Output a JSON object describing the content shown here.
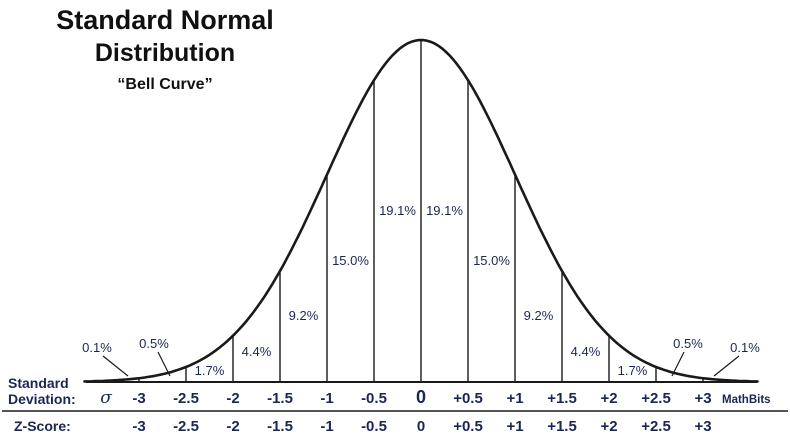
{
  "title": {
    "line1": "Standard Normal",
    "line2": "Distribution",
    "subtitle": "“Bell Curve”"
  },
  "watermark": "MathBits",
  "axis": {
    "row1_label_line1": "Standard",
    "row1_label_line2": "Deviation:",
    "sigma": "σ",
    "row2_label": "Z-Score:",
    "sd_ticks": [
      "-3",
      "-2.5",
      "-2",
      "-1.5",
      "-1",
      "-0.5",
      "0",
      "+0.5",
      "+1",
      "+1.5",
      "+2",
      "+2.5",
      "+3"
    ],
    "z_ticks": [
      "-3",
      "-2.5",
      "-2",
      "-1.5",
      "-1",
      "-0.5",
      "0",
      "+0.5",
      "+1",
      "+1.5",
      "+2",
      "+2.5",
      "+3"
    ]
  },
  "colors": {
    "line": "#1a1a1a",
    "text": "#1b2653",
    "title": "#111111"
  },
  "chart_data": {
    "type": "area",
    "title": "Standard Normal Distribution “Bell Curve”",
    "curve": "normal_pdf",
    "x_axis_label": "Standard Deviation / Z-Score",
    "x_ticks_sd": [
      -3,
      -2.5,
      -2,
      -1.5,
      -1,
      -0.5,
      0,
      0.5,
      1,
      1.5,
      2,
      2.5,
      3
    ],
    "segments": [
      {
        "from": "-inf",
        "to": -3,
        "percent": "0.1%",
        "value": 0.1
      },
      {
        "from": -3,
        "to": -2.5,
        "percent": "0.5%",
        "value": 0.5
      },
      {
        "from": -2.5,
        "to": -2,
        "percent": "1.7%",
        "value": 1.7
      },
      {
        "from": -2,
        "to": -1.5,
        "percent": "4.4%",
        "value": 4.4
      },
      {
        "from": -1.5,
        "to": -1,
        "percent": "9.2%",
        "value": 9.2
      },
      {
        "from": -1,
        "to": -0.5,
        "percent": "15.0%",
        "value": 15.0
      },
      {
        "from": -0.5,
        "to": 0,
        "percent": "19.1%",
        "value": 19.1
      },
      {
        "from": 0,
        "to": 0.5,
        "percent": "19.1%",
        "value": 19.1
      },
      {
        "from": 0.5,
        "to": 1,
        "percent": "15.0%",
        "value": 15.0
      },
      {
        "from": 1,
        "to": 1.5,
        "percent": "9.2%",
        "value": 9.2
      },
      {
        "from": 1.5,
        "to": 2,
        "percent": "4.4%",
        "value": 4.4
      },
      {
        "from": 2,
        "to": 2.5,
        "percent": "1.7%",
        "value": 1.7
      },
      {
        "from": 2.5,
        "to": 3,
        "percent": "0.5%",
        "value": 0.5
      },
      {
        "from": 3,
        "to": "+inf",
        "percent": "0.1%",
        "value": 0.1
      }
    ]
  }
}
